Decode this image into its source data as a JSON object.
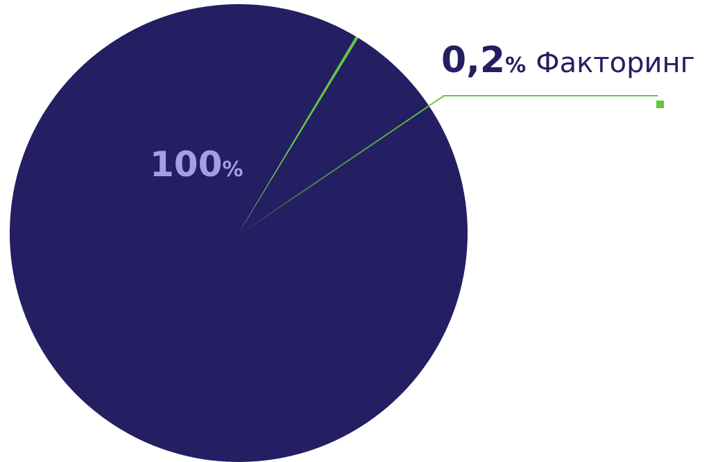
{
  "chart_data": {
    "type": "pie",
    "slices": [
      {
        "label": "",
        "value": 99.8,
        "display_number": "100",
        "display_unit": "%",
        "color": "#241e62"
      },
      {
        "label": "Факторинг",
        "value": 0.2,
        "display_number": "0,2",
        "display_unit": "%",
        "color": "#5fc93a"
      }
    ],
    "label_colors": {
      "main": "#a79ce6",
      "callout_value": "#241e62",
      "callout_text": "#241e62",
      "leader": "#5fc93a"
    }
  }
}
